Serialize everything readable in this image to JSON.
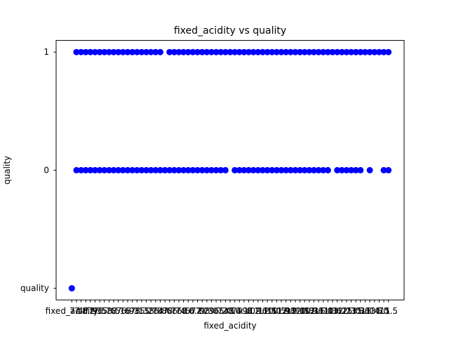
{
  "chart_data": {
    "type": "scatter",
    "title": "fixed_acidity vs quality",
    "xlabel": "fixed_acidity",
    "ylabel": "quality",
    "color": "#0000ff",
    "grid": false,
    "y_categories": [
      "quality",
      "0",
      "1"
    ],
    "x_categories": [
      "fixed_acidity",
      "7.4",
      "7.8",
      "11.2",
      "7.9",
      "7.3",
      "7.5",
      "6.7",
      "5.6",
      "8.5",
      "8.1",
      "7.6",
      "6.9",
      "6.3",
      "7.1",
      "8.3",
      "5.2",
      "5.7",
      "8.8",
      "6.8",
      "4.6",
      "7.7",
      "8.7",
      "6.4",
      "6.6",
      "8.6",
      "10.2",
      "7.0",
      "7.2",
      "9.3",
      "8.0",
      "9.7",
      "6.2",
      "5.0",
      "4.7",
      "8.4",
      "10.1",
      "9.4",
      "9.0",
      "8.2",
      "11.6",
      "9.2",
      "11.5",
      "10.0",
      "10.5",
      "11.9",
      "12.8",
      "9.9",
      "12.0",
      "12.5",
      "10.8",
      "10.3",
      "12.6",
      "9.6",
      "11.0",
      "11.3",
      "10.6",
      "13.2",
      "12.2",
      "12.3",
      "15.0",
      "13.3",
      "15.6",
      "5.3",
      "11.4",
      "13.7",
      "14.0",
      "5.1",
      "15.5"
    ],
    "points": [
      {
        "x": "fixed_acidity",
        "y": "quality"
      },
      {
        "x": "7.4",
        "y": "0"
      },
      {
        "x": "7.4",
        "y": "1"
      },
      {
        "x": "7.8",
        "y": "0"
      },
      {
        "x": "7.8",
        "y": "1"
      },
      {
        "x": "11.2",
        "y": "0"
      },
      {
        "x": "11.2",
        "y": "1"
      },
      {
        "x": "7.9",
        "y": "0"
      },
      {
        "x": "7.9",
        "y": "1"
      },
      {
        "x": "7.3",
        "y": "0"
      },
      {
        "x": "7.3",
        "y": "1"
      },
      {
        "x": "7.5",
        "y": "0"
      },
      {
        "x": "7.5",
        "y": "1"
      },
      {
        "x": "6.7",
        "y": "0"
      },
      {
        "x": "6.7",
        "y": "1"
      },
      {
        "x": "5.6",
        "y": "0"
      },
      {
        "x": "5.6",
        "y": "1"
      },
      {
        "x": "8.5",
        "y": "0"
      },
      {
        "x": "8.5",
        "y": "1"
      },
      {
        "x": "8.1",
        "y": "0"
      },
      {
        "x": "8.1",
        "y": "1"
      },
      {
        "x": "7.6",
        "y": "0"
      },
      {
        "x": "7.6",
        "y": "1"
      },
      {
        "x": "6.9",
        "y": "0"
      },
      {
        "x": "6.9",
        "y": "1"
      },
      {
        "x": "6.3",
        "y": "0"
      },
      {
        "x": "6.3",
        "y": "1"
      },
      {
        "x": "7.1",
        "y": "0"
      },
      {
        "x": "7.1",
        "y": "1"
      },
      {
        "x": "8.3",
        "y": "0"
      },
      {
        "x": "8.3",
        "y": "1"
      },
      {
        "x": "5.2",
        "y": "0"
      },
      {
        "x": "5.2",
        "y": "1"
      },
      {
        "x": "5.7",
        "y": "0"
      },
      {
        "x": "5.7",
        "y": "1"
      },
      {
        "x": "8.8",
        "y": "0"
      },
      {
        "x": "8.8",
        "y": "1"
      },
      {
        "x": "6.8",
        "y": "0"
      },
      {
        "x": "6.8",
        "y": "1"
      },
      {
        "x": "4.6",
        "y": "0"
      },
      {
        "x": "7.7",
        "y": "0"
      },
      {
        "x": "7.7",
        "y": "1"
      },
      {
        "x": "8.7",
        "y": "0"
      },
      {
        "x": "8.7",
        "y": "1"
      },
      {
        "x": "6.4",
        "y": "0"
      },
      {
        "x": "6.4",
        "y": "1"
      },
      {
        "x": "6.6",
        "y": "0"
      },
      {
        "x": "6.6",
        "y": "1"
      },
      {
        "x": "8.6",
        "y": "0"
      },
      {
        "x": "8.6",
        "y": "1"
      },
      {
        "x": "10.2",
        "y": "0"
      },
      {
        "x": "10.2",
        "y": "1"
      },
      {
        "x": "7.0",
        "y": "0"
      },
      {
        "x": "7.0",
        "y": "1"
      },
      {
        "x": "7.2",
        "y": "0"
      },
      {
        "x": "7.2",
        "y": "1"
      },
      {
        "x": "9.3",
        "y": "0"
      },
      {
        "x": "9.3",
        "y": "1"
      },
      {
        "x": "8.0",
        "y": "0"
      },
      {
        "x": "8.0",
        "y": "1"
      },
      {
        "x": "9.7",
        "y": "0"
      },
      {
        "x": "9.7",
        "y": "1"
      },
      {
        "x": "6.2",
        "y": "0"
      },
      {
        "x": "6.2",
        "y": "1"
      },
      {
        "x": "5.0",
        "y": "0"
      },
      {
        "x": "5.0",
        "y": "1"
      },
      {
        "x": "4.7",
        "y": "1"
      },
      {
        "x": "8.4",
        "y": "0"
      },
      {
        "x": "8.4",
        "y": "1"
      },
      {
        "x": "10.1",
        "y": "0"
      },
      {
        "x": "10.1",
        "y": "1"
      },
      {
        "x": "9.4",
        "y": "0"
      },
      {
        "x": "9.4",
        "y": "1"
      },
      {
        "x": "9.0",
        "y": "0"
      },
      {
        "x": "9.0",
        "y": "1"
      },
      {
        "x": "8.2",
        "y": "0"
      },
      {
        "x": "8.2",
        "y": "1"
      },
      {
        "x": "11.6",
        "y": "0"
      },
      {
        "x": "11.6",
        "y": "1"
      },
      {
        "x": "9.2",
        "y": "0"
      },
      {
        "x": "9.2",
        "y": "1"
      },
      {
        "x": "11.5",
        "y": "0"
      },
      {
        "x": "11.5",
        "y": "1"
      },
      {
        "x": "10.0",
        "y": "0"
      },
      {
        "x": "10.0",
        "y": "1"
      },
      {
        "x": "10.5",
        "y": "0"
      },
      {
        "x": "10.5",
        "y": "1"
      },
      {
        "x": "11.9",
        "y": "0"
      },
      {
        "x": "11.9",
        "y": "1"
      },
      {
        "x": "12.8",
        "y": "0"
      },
      {
        "x": "12.8",
        "y": "1"
      },
      {
        "x": "9.9",
        "y": "0"
      },
      {
        "x": "9.9",
        "y": "1"
      },
      {
        "x": "12.0",
        "y": "0"
      },
      {
        "x": "12.0",
        "y": "1"
      },
      {
        "x": "12.5",
        "y": "0"
      },
      {
        "x": "12.5",
        "y": "1"
      },
      {
        "x": "10.8",
        "y": "0"
      },
      {
        "x": "10.8",
        "y": "1"
      },
      {
        "x": "10.3",
        "y": "0"
      },
      {
        "x": "10.3",
        "y": "1"
      },
      {
        "x": "12.6",
        "y": "0"
      },
      {
        "x": "12.6",
        "y": "1"
      },
      {
        "x": "9.6",
        "y": "0"
      },
      {
        "x": "9.6",
        "y": "1"
      },
      {
        "x": "11.0",
        "y": "0"
      },
      {
        "x": "11.0",
        "y": "1"
      },
      {
        "x": "11.3",
        "y": "0"
      },
      {
        "x": "11.3",
        "y": "1"
      },
      {
        "x": "10.6",
        "y": "1"
      },
      {
        "x": "13.2",
        "y": "0"
      },
      {
        "x": "13.2",
        "y": "1"
      },
      {
        "x": "12.2",
        "y": "0"
      },
      {
        "x": "12.2",
        "y": "1"
      },
      {
        "x": "12.3",
        "y": "0"
      },
      {
        "x": "12.3",
        "y": "1"
      },
      {
        "x": "15.0",
        "y": "0"
      },
      {
        "x": "15.0",
        "y": "1"
      },
      {
        "x": "13.3",
        "y": "0"
      },
      {
        "x": "13.3",
        "y": "1"
      },
      {
        "x": "15.6",
        "y": "0"
      },
      {
        "x": "15.6",
        "y": "1"
      },
      {
        "x": "5.3",
        "y": "1"
      },
      {
        "x": "11.4",
        "y": "0"
      },
      {
        "x": "11.4",
        "y": "1"
      },
      {
        "x": "13.7",
        "y": "1"
      },
      {
        "x": "14.0",
        "y": "1"
      },
      {
        "x": "5.1",
        "y": "0"
      },
      {
        "x": "5.1",
        "y": "1"
      },
      {
        "x": "15.5",
        "y": "0"
      },
      {
        "x": "15.5",
        "y": "1"
      }
    ]
  }
}
